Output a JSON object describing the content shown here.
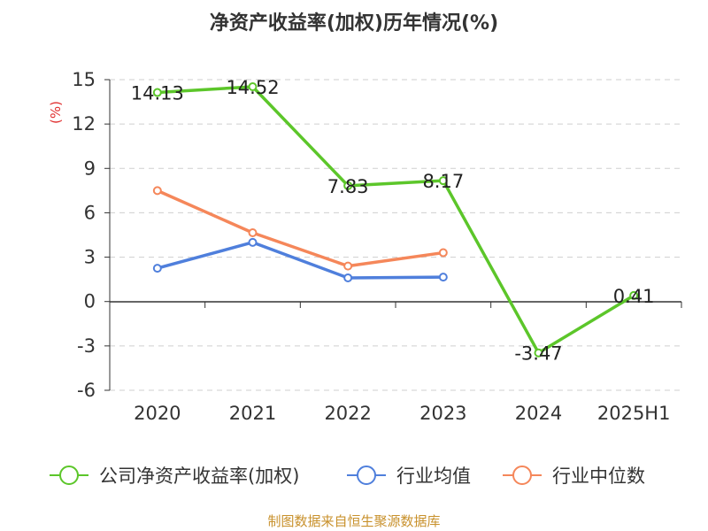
{
  "chart_data": {
    "type": "line",
    "title": "净资产收益率(加权)历年情况(%)",
    "ylabel": "(%)",
    "categories": [
      "2020",
      "2021",
      "2022",
      "2023",
      "2024",
      "2025H1"
    ],
    "ylim": [
      -6,
      15
    ],
    "yticks": [
      15,
      12,
      9,
      6,
      3,
      0,
      -3,
      -6
    ],
    "grid": true,
    "legend_position": "bottom",
    "series": [
      {
        "name": "公司净资产收益率(加权)",
        "color": "#5cc62a",
        "values": [
          14.13,
          14.52,
          7.83,
          8.17,
          -3.47,
          0.41
        ],
        "labels": [
          "14.13",
          "14.52",
          "7.83",
          "8.17",
          "-3.47",
          "0.41"
        ]
      },
      {
        "name": "行业均值",
        "color": "#4f7fdc",
        "values": [
          2.25,
          4.0,
          1.6,
          1.65,
          null,
          null
        ]
      },
      {
        "name": "行业中位数",
        "color": "#f5875a",
        "values": [
          7.5,
          4.65,
          2.4,
          3.3,
          null,
          null
        ]
      }
    ]
  },
  "source": "制图数据来自恒生聚源数据库"
}
